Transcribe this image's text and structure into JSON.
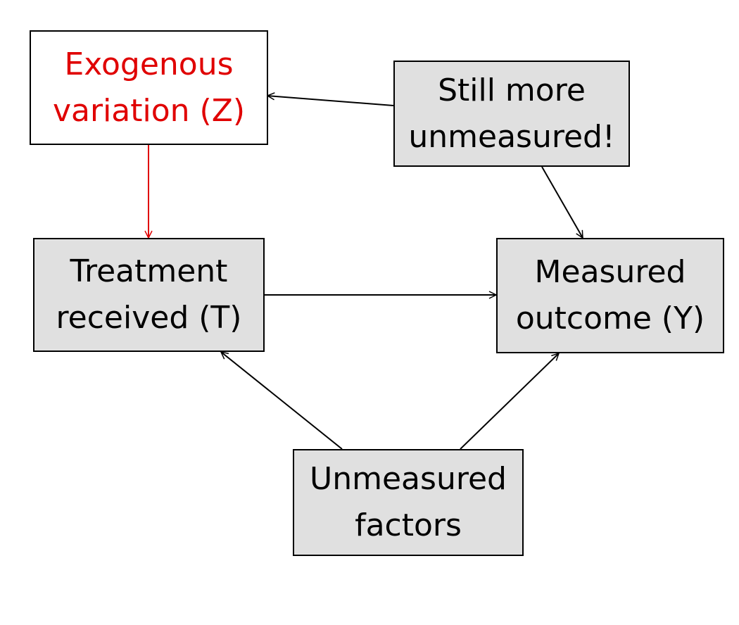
{
  "colors": {
    "box_fill": "#e0e0e0",
    "box_fill_highlight": "#ffffff",
    "border": "#000000",
    "text": "#000000",
    "highlight": "#e00000"
  },
  "nodes": {
    "exogenous": {
      "line1": "Exogenous",
      "line2": "variation (Z)"
    },
    "still_more": {
      "line1": "Still more",
      "line2": "unmeasured!"
    },
    "treatment": {
      "line1": "Treatment",
      "line2": "received (T)"
    },
    "outcome": {
      "line1": "Measured",
      "line2": "outcome (Y)"
    },
    "unmeasured": {
      "line1": "Unmeasured",
      "line2": "factors"
    }
  },
  "edges": [
    {
      "from": "still_more",
      "to": "exogenous",
      "color": "#000000"
    },
    {
      "from": "exogenous",
      "to": "treatment",
      "color": "#e00000"
    },
    {
      "from": "still_more",
      "to": "outcome",
      "color": "#000000"
    },
    {
      "from": "treatment",
      "to": "outcome",
      "color": "#000000"
    },
    {
      "from": "unmeasured",
      "to": "treatment",
      "color": "#000000"
    },
    {
      "from": "unmeasured",
      "to": "outcome",
      "color": "#000000"
    }
  ]
}
